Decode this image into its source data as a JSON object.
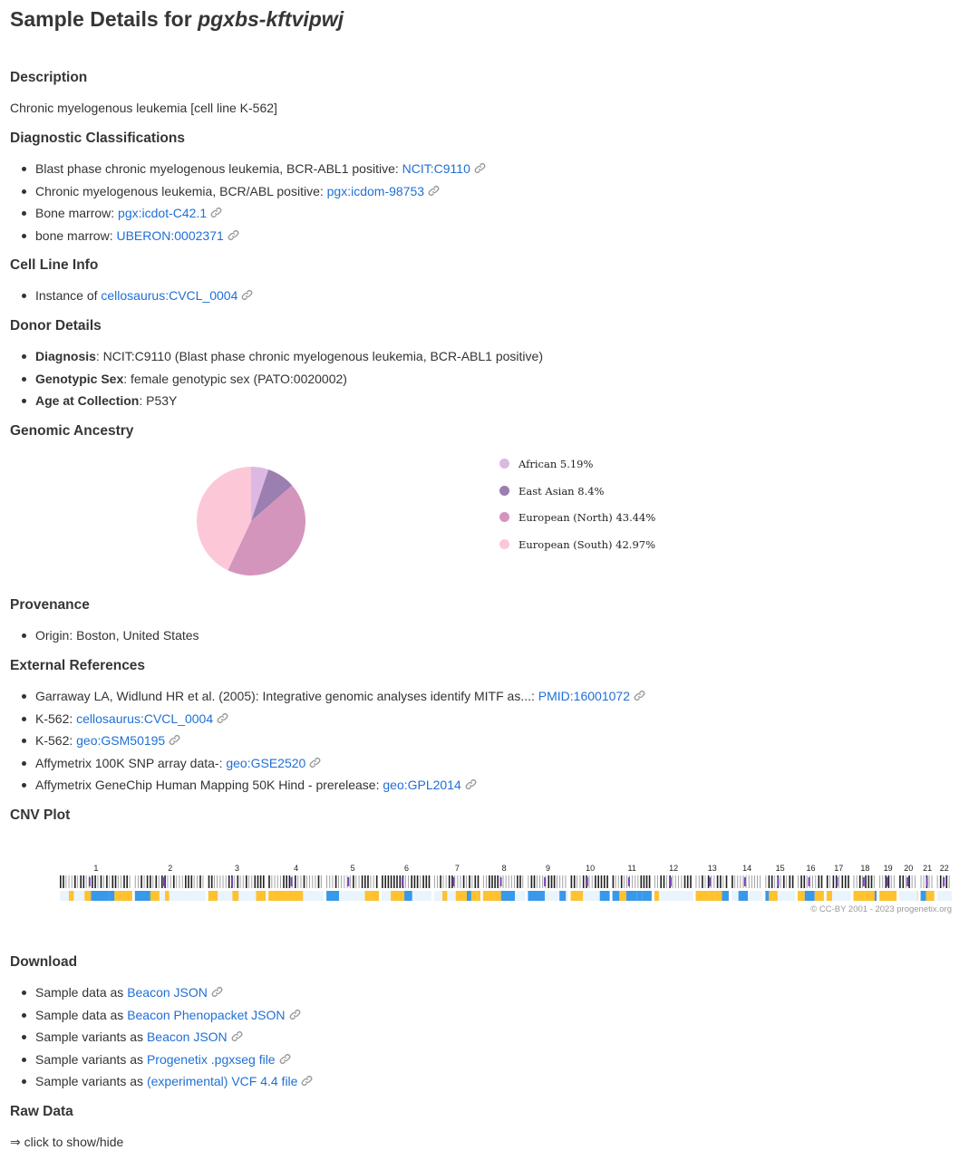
{
  "title": {
    "prefix": "Sample Details for",
    "sample_id": "pgxbs-kftvipwj"
  },
  "description": {
    "heading": "Description",
    "text": "Chronic myelogenous leukemia [cell line K-562]"
  },
  "diagnostic": {
    "heading": "Diagnostic Classifications",
    "items": [
      {
        "label": "Blast phase chronic myelogenous leukemia, BCR-ABL1 positive:",
        "link": "NCIT:C9110"
      },
      {
        "label": "Chronic myelogenous leukemia, BCR/ABL positive:",
        "link": "pgx:icdom-98753"
      },
      {
        "label": "Bone marrow:",
        "link": "pgx:icdot-C42.1"
      },
      {
        "label": "bone marrow:",
        "link": "UBERON:0002371"
      }
    ]
  },
  "cell_line": {
    "heading": "Cell Line Info",
    "items": [
      {
        "label": "Instance of",
        "link": "cellosaurus:CVCL_0004"
      }
    ]
  },
  "donor": {
    "heading": "Donor Details",
    "items": [
      {
        "key": "Diagnosis",
        "value": ": NCIT:C9110 (Blast phase chronic myelogenous leukemia, BCR-ABL1 positive)"
      },
      {
        "key": "Genotypic Sex",
        "value": ": female genotypic sex (PATO:0020002)"
      },
      {
        "key": "Age at Collection",
        "value": ": P53Y"
      }
    ]
  },
  "ancestry": {
    "heading": "Genomic Ancestry",
    "legend": [
      {
        "label": "African 5.19%",
        "color": "#dcb8e2"
      },
      {
        "label": "East Asian 8.4%",
        "color": "#9a7fb0"
      },
      {
        "label": "European (North) 43.44%",
        "color": "#d495bd"
      },
      {
        "label": "European (South) 42.97%",
        "color": "#fcc8d8"
      }
    ]
  },
  "chart_data": {
    "type": "pie",
    "categories": [
      "African",
      "East Asian",
      "European (North)",
      "European (South)"
    ],
    "values": [
      5.19,
      8.4,
      43.44,
      42.97
    ],
    "colors": [
      "#dcb8e2",
      "#9a7fb0",
      "#d495bd",
      "#fcc8d8"
    ],
    "legend_position": "right"
  },
  "provenance": {
    "heading": "Provenance",
    "items": [
      {
        "label": "Origin: Boston, United States"
      }
    ]
  },
  "external_refs": {
    "heading": "External References",
    "items": [
      {
        "label": "Garraway LA, Widlund HR et al. (2005): Integrative genomic analyses identify MITF as...:",
        "link": "PMID:16001072"
      },
      {
        "label": "K-562:",
        "link": "cellosaurus:CVCL_0004"
      },
      {
        "label": "K-562:",
        "link": "geo:GSM50195"
      },
      {
        "label": "Affymetrix 100K SNP array data-:",
        "link": "geo:GSE2520"
      },
      {
        "label": "Affymetrix GeneChip Human Mapping 50K Hind - prerelease:",
        "link": "geo:GPL2014"
      }
    ]
  },
  "cnv": {
    "heading": "CNV Plot",
    "chromosomes": [
      "1",
      "2",
      "3",
      "4",
      "5",
      "6",
      "7",
      "8",
      "9",
      "10",
      "11",
      "12",
      "13",
      "14",
      "15",
      "16",
      "17",
      "18",
      "19",
      "20",
      "21",
      "22"
    ],
    "copyright": "© CC-BY 2001 - 2023 progenetix.org",
    "gain_color": "#ffc12e",
    "loss_color": "#3899ea"
  },
  "download": {
    "heading": "Download",
    "items": [
      {
        "label": "Sample data as",
        "link": "Beacon JSON"
      },
      {
        "label": "Sample data as",
        "link": "Beacon Phenopacket JSON"
      },
      {
        "label": "Sample variants as",
        "link": "Beacon JSON"
      },
      {
        "label": "Sample variants as",
        "link": "Progenetix .pgxseg file"
      },
      {
        "label": "Sample variants as",
        "link": "(experimental) VCF 4.4 file"
      }
    ]
  },
  "raw_data": {
    "heading": "Raw Data",
    "toggle": "⇒ click to show/hide"
  }
}
